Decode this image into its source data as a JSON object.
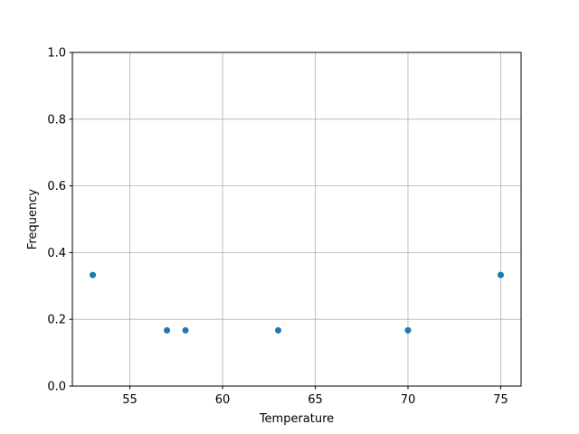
{
  "chart_data": {
    "type": "scatter",
    "title": "",
    "xlabel": "Temperature",
    "ylabel": "Frequency",
    "xlim": [
      51.9,
      76.1
    ],
    "ylim": [
      0.0,
      1.0
    ],
    "xticks": [
      55,
      60,
      65,
      70,
      75
    ],
    "xtick_labels": [
      "55",
      "60",
      "65",
      "70",
      "75"
    ],
    "yticks": [
      0.0,
      0.2,
      0.4,
      0.6,
      0.8,
      1.0
    ],
    "ytick_labels": [
      "0.0",
      "0.2",
      "0.4",
      "0.6",
      "0.8",
      "1.0"
    ],
    "grid": true,
    "points": [
      {
        "x": 53,
        "y": 0.333
      },
      {
        "x": 57,
        "y": 0.167
      },
      {
        "x": 58,
        "y": 0.167
      },
      {
        "x": 63,
        "y": 0.167
      },
      {
        "x": 70,
        "y": 0.167
      },
      {
        "x": 75,
        "y": 0.333
      }
    ],
    "colors": {
      "marker": "#1f77b4",
      "grid": "#b0b0b0",
      "axes": "#000000"
    }
  }
}
